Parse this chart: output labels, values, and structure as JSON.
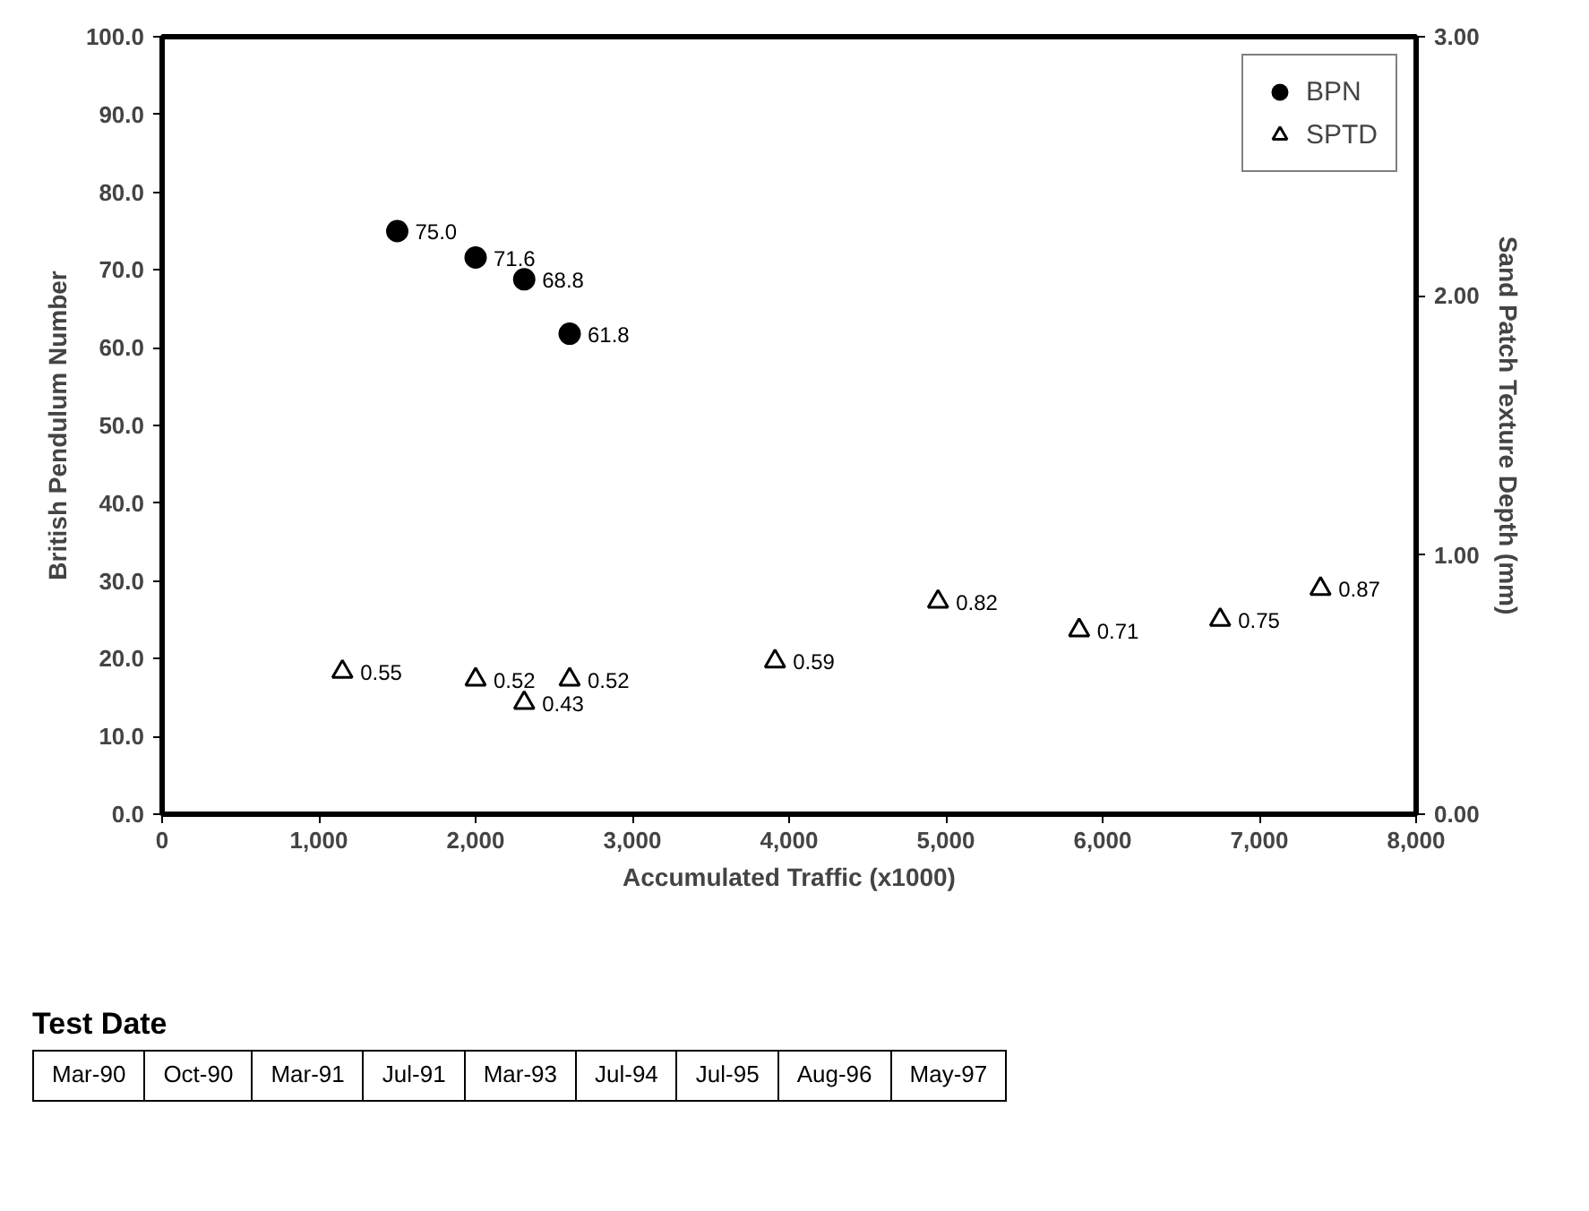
{
  "chart_data": {
    "type": "scatter",
    "xlabel": "Accumulated Traffic (x1000)",
    "ylabel": "British Pendulum Number",
    "y2label": "Sand Patch Texture Depth (mm)",
    "xlim": [
      0,
      8000
    ],
    "xticks": [
      0,
      {
        "value": 1000,
        "label": "1,000"
      },
      {
        "value": 2000,
        "label": "2,000"
      },
      {
        "value": 3000,
        "label": "3,000"
      },
      {
        "value": 4000,
        "label": "4,000"
      },
      {
        "value": 5000,
        "label": "5,000"
      },
      {
        "value": 6000,
        "label": "6,000"
      },
      {
        "value": 7000,
        "label": "7,000"
      },
      {
        "value": 8000,
        "label": "8,000"
      }
    ],
    "ylim": [
      0,
      100
    ],
    "yticks": [
      {
        "value": 0,
        "label": "0.0"
      },
      {
        "value": 10,
        "label": "10.0"
      },
      {
        "value": 20,
        "label": "20.0"
      },
      {
        "value": 30,
        "label": "30.0"
      },
      {
        "value": 40,
        "label": "40.0"
      },
      {
        "value": 50,
        "label": "50.0"
      },
      {
        "value": 60,
        "label": "60.0"
      },
      {
        "value": 70,
        "label": "70.0"
      },
      {
        "value": 80,
        "label": "80.0"
      },
      {
        "value": 90,
        "label": "90.0"
      },
      {
        "value": 100,
        "label": "100.0"
      }
    ],
    "y2lim": [
      0,
      3
    ],
    "y2ticks": [
      {
        "value": 0,
        "label": "0.00"
      },
      {
        "value": 1,
        "label": "1.00"
      },
      {
        "value": 2,
        "label": "2.00"
      },
      {
        "value": 3,
        "label": "3.00"
      }
    ],
    "grid": false,
    "legend": "top right",
    "series": [
      {
        "name": "BPN",
        "color": "#000000",
        "marker": "circle",
        "x": [
          1500,
          2000,
          2310,
          2600
        ],
        "values": [
          75.0,
          71.6,
          68.8,
          61.8
        ],
        "value_labels": [
          "75.0",
          "71.6",
          "68.8",
          "61.8"
        ]
      },
      {
        "name": "SPTD",
        "color": "#000000",
        "marker": "triangle",
        "axis": "y2",
        "x": [
          1150,
          2000,
          2310,
          2600,
          3910,
          4950,
          5850,
          6750,
          7390
        ],
        "values": [
          0.55,
          0.52,
          0.43,
          0.52,
          0.59,
          0.82,
          0.71,
          0.75,
          0.87
        ],
        "value_labels": [
          "0.55",
          "0.52",
          "0.43",
          "0.52",
          "0.59",
          "0.82",
          "0.71",
          "0.75",
          "0.87"
        ]
      }
    ],
    "annotations": [
      "Test Date",
      "Mar-90",
      "Oct-90",
      "Mar-91",
      "Jul-91",
      "Mar-93",
      "Jul-94",
      "Jul-95",
      "Aug-96",
      "May-97"
    ]
  }
}
